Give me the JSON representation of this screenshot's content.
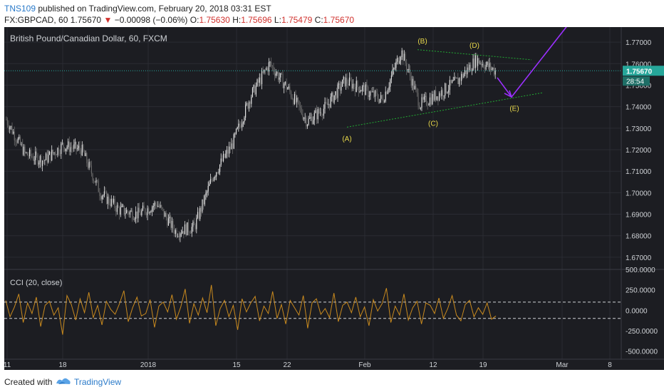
{
  "header": {
    "author": "TNS109",
    "published": " published on TradingView.com, February 20, 2018 03:31 EST",
    "symbol": "FX:GBPCAD, 60",
    "last": "1.75670",
    "change": "−0.00098 (−0.06%)",
    "o_label": "O:",
    "o": "1.75630",
    "h_label": "H:",
    "h": "1.75696",
    "l_label": "L:",
    "l": "1.75479",
    "c_label": "C:",
    "c": "1.75670"
  },
  "footer": {
    "created_with": "Created with",
    "brand": "TradingView"
  },
  "colors": {
    "background": "#1c1d22",
    "candle_up": "#e8e8e8",
    "candle_down": "#6b6b6b",
    "trendline": "#22aa33",
    "arrow": "#9b30ff",
    "wave_label": "#e8d84a",
    "cci_line": "#c98a1e",
    "price_line": "#26a69a",
    "price_badge": "#26a69a"
  },
  "chart_data": [
    {
      "type": "candlestick",
      "title": "British Pound/Canadian Dollar, 60, FXCM",
      "ylim": [
        1.665,
        1.777
      ],
      "y_ticks": [
        "1.77000",
        "1.76000",
        "1.75000",
        "1.74000",
        "1.73000",
        "1.72000",
        "1.71000",
        "1.70000",
        "1.69000",
        "1.68000",
        "1.67000"
      ],
      "x_ticks": [
        "11",
        "18",
        "2018",
        "15",
        "22",
        "Feb",
        "12",
        "19",
        "Mar",
        "8"
      ],
      "last_price": "1.75670",
      "countdown": "28:54",
      "series": [
        {
          "x": [
            "Dec 8",
            "Dec 11",
            "Dec 14",
            "Dec 18",
            "Dec 21",
            "Dec 26",
            "Dec 29",
            "Jan 3",
            "Jan 5",
            "Jan 9",
            "Jan 11",
            "Jan 15",
            "Jan 18",
            "Jan 22",
            "Jan 24",
            "Jan 26",
            "Jan 29",
            "Jan 31",
            "Feb 2",
            "Feb 5",
            "Feb 7",
            "Feb 9",
            "Feb 12",
            "Feb 14",
            "Feb 16",
            "Feb 19",
            "Feb 20"
          ],
          "values": [
            1.734,
            1.718,
            1.715,
            1.722,
            1.72,
            1.7,
            1.692,
            1.69,
            1.695,
            1.682,
            1.684,
            1.708,
            1.722,
            1.745,
            1.76,
            1.748,
            1.733,
            1.74,
            1.752,
            1.748,
            1.743,
            1.766,
            1.741,
            1.746,
            1.752,
            1.762,
            1.7567
          ]
        }
      ],
      "annotations": [
        {
          "label": "(A)",
          "x": "Jan 31",
          "y": 1.73
        },
        {
          "label": "(B)",
          "x": "Feb 9",
          "y": 1.766
        },
        {
          "label": "(C)",
          "x": "Feb 12",
          "y": 1.737
        },
        {
          "label": "(D)",
          "x": "Feb 17",
          "y": 1.764
        },
        {
          "label": "(E)",
          "x": "Feb 23",
          "y": 1.744
        }
      ]
    },
    {
      "type": "line",
      "title": "CCI (20, close)",
      "ylim": [
        -600,
        500
      ],
      "y_ticks": [
        "500.0000",
        "250.0000",
        "0.0000",
        "-250.0000",
        "-500.0000"
      ],
      "levels": [
        100,
        -100
      ],
      "series": [
        {
          "name": "CCI (20, close)",
          "values": [
            120,
            -80,
            40,
            200,
            -150,
            90,
            -40,
            160,
            -200,
            60,
            110,
            -60,
            30,
            -300,
            180,
            70,
            -120,
            140,
            -30,
            220,
            -90,
            60,
            -180,
            110,
            10,
            -50,
            80,
            240,
            -140,
            30,
            160,
            -70,
            -40,
            130,
            -210,
            50,
            100,
            -20,
            190,
            -110,
            40,
            260,
            -160,
            80,
            -60,
            150,
            -30,
            310,
            -190,
            20,
            120,
            -80,
            60,
            -240,
            140,
            -20,
            90,
            170,
            -130,
            50,
            -40,
            230,
            -100,
            70,
            -170,
            120,
            30,
            -60,
            180,
            -220,
            90,
            140,
            -50,
            20,
            -90,
            210,
            -140,
            60,
            100,
            -30,
            160,
            -80,
            40,
            -190,
            130,
            -10,
            80,
            270,
            -150,
            50,
            -60,
            200,
            -120,
            30,
            110,
            -170,
            90,
            60,
            -40,
            150,
            -100,
            20,
            180,
            -60,
            -130,
            70,
            120,
            -80,
            30,
            -50,
            90,
            -110,
            -70
          ]
        }
      ]
    }
  ]
}
